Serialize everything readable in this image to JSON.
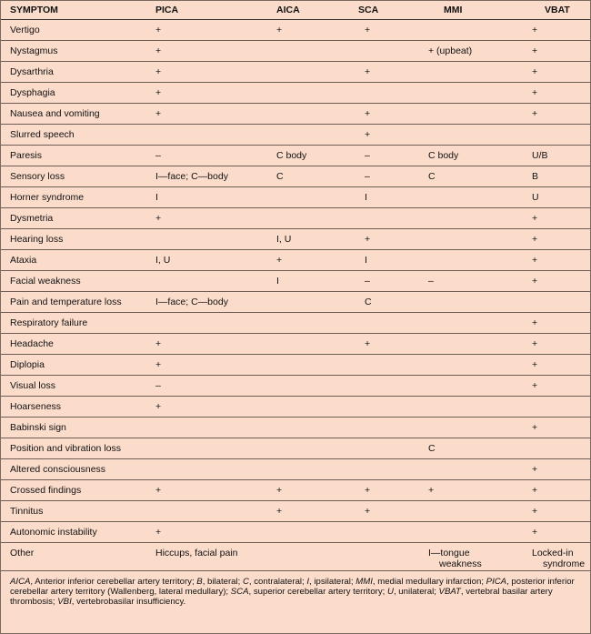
{
  "table": {
    "header": [
      "SYMPTOM",
      "PICA",
      "AICA",
      "SCA",
      "MMI",
      "VBAT"
    ],
    "rows": [
      [
        "Vertigo",
        "+",
        "+",
        "+",
        null,
        "+"
      ],
      [
        "Nystagmus",
        "+",
        null,
        null,
        "+ (upbeat)",
        "+"
      ],
      [
        "Dysarthria",
        "+",
        null,
        "+",
        null,
        "+"
      ],
      [
        "Dysphagia",
        "+",
        null,
        null,
        null,
        "+"
      ],
      [
        "Nausea and vomiting",
        "+",
        null,
        "+",
        null,
        "+"
      ],
      [
        "Slurred speech",
        null,
        null,
        "+",
        null,
        null
      ],
      [
        "Paresis",
        "–",
        "C body",
        "–",
        "C body",
        "U/B"
      ],
      [
        "Sensory loss",
        "I—face; C—body",
        "C",
        "–",
        "C",
        "B"
      ],
      [
        "Horner syndrome",
        "I",
        null,
        "I",
        null,
        "U"
      ],
      [
        "Dysmetria",
        "+",
        null,
        null,
        null,
        "+"
      ],
      [
        "Hearing loss",
        null,
        "I, U",
        "+",
        null,
        "+"
      ],
      [
        "Ataxia",
        "I, U",
        "+",
        "I",
        null,
        "+"
      ],
      [
        "Facial weakness",
        null,
        "I",
        "–",
        "–",
        "+"
      ],
      [
        "Pain and temperature loss",
        "I—face; C—body",
        null,
        "C",
        null,
        null
      ],
      [
        "Respiratory failure",
        null,
        null,
        null,
        null,
        "+"
      ],
      [
        "Headache",
        "+",
        null,
        "+",
        null,
        "+"
      ],
      [
        "Diplopia",
        "+",
        null,
        null,
        null,
        "+"
      ],
      [
        "Visual loss",
        "–",
        null,
        null,
        null,
        "+"
      ],
      [
        "Hoarseness",
        "+",
        null,
        null,
        null,
        null
      ],
      [
        "Babinski sign",
        null,
        null,
        null,
        null,
        "+"
      ],
      [
        "Position and vibration loss",
        null,
        null,
        null,
        "C",
        null
      ],
      [
        "Altered consciousness",
        null,
        null,
        null,
        null,
        "+"
      ],
      [
        "Crossed findings",
        "+",
        "+",
        "+",
        "+",
        "+"
      ],
      [
        "Tinnitus",
        null,
        "+",
        "+",
        null,
        "+"
      ],
      [
        "Autonomic instability",
        "+",
        null,
        null,
        null,
        "+"
      ],
      [
        "Other",
        "Hiccups, facial pain",
        null,
        null,
        "I—tongue weakness",
        "Locked-in syndrome"
      ]
    ]
  },
  "footnote": [
    {
      "text": "AICA",
      "italic": true
    },
    {
      "text": ", Anterior inferior cerebellar artery territory; "
    },
    {
      "text": "B",
      "italic": true
    },
    {
      "text": ", bilateral; "
    },
    {
      "text": "C",
      "italic": true
    },
    {
      "text": ", contralateral; "
    },
    {
      "text": "I",
      "italic": true
    },
    {
      "text": ", ipsilateral; "
    },
    {
      "text": "MMI",
      "italic": true
    },
    {
      "text": ", medial medullary infarction; "
    },
    {
      "text": "PICA",
      "italic": true
    },
    {
      "text": ", posterior inferior cerebellar artery territory (Wallenberg, lateral medullary); "
    },
    {
      "text": "SCA",
      "italic": true
    },
    {
      "text": ", superior cerebellar artery territory; "
    },
    {
      "text": "U",
      "italic": true
    },
    {
      "text": ", unilateral; "
    },
    {
      "text": "VBAT",
      "italic": true
    },
    {
      "text": ", vertebral basilar artery thrombosis; "
    },
    {
      "text": "VBI",
      "italic": true
    },
    {
      "text": ", vertebrobasilar insufficiency."
    }
  ]
}
